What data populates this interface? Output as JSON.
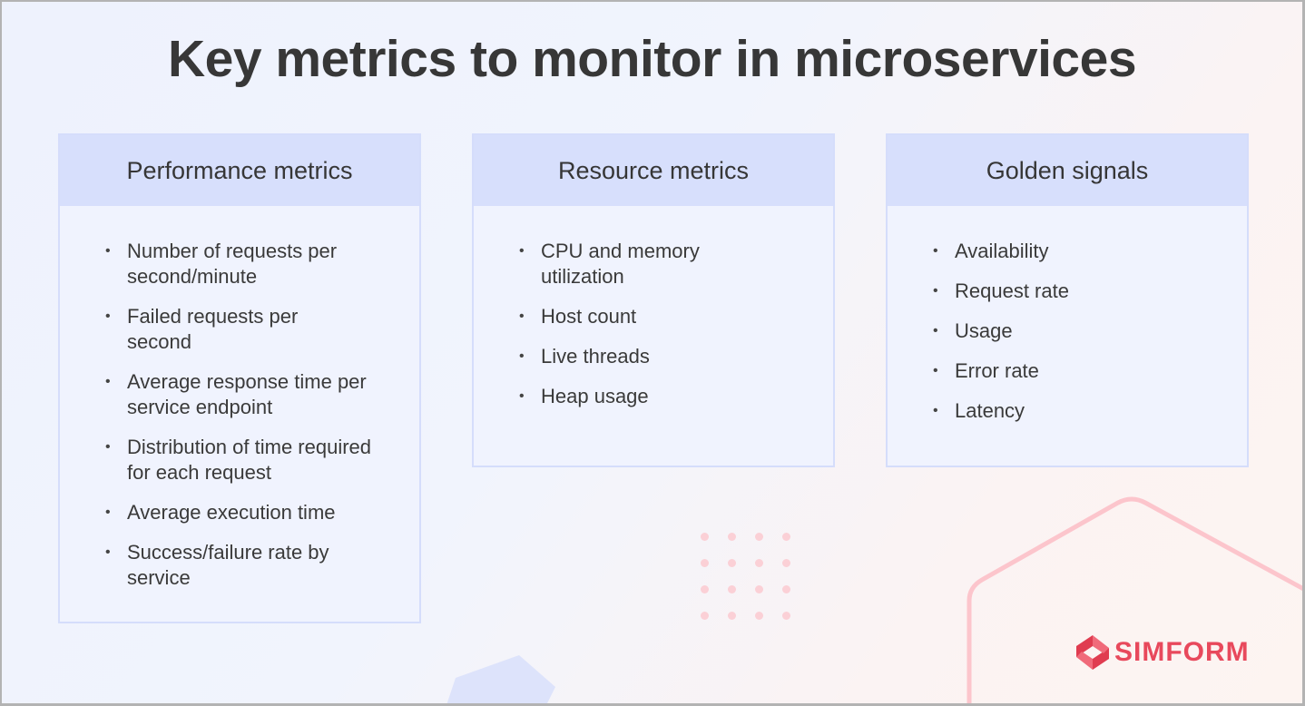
{
  "title": "Key metrics to monitor in microservices",
  "cards": [
    {
      "title": "Performance metrics",
      "items": [
        "Number of requests per second/minute",
        "Failed requests per second",
        "Average response time per service endpoint",
        "Distribution of time required for each request",
        "Average execution time",
        "Success/failure rate by service"
      ]
    },
    {
      "title": "Resource metrics",
      "items": [
        "CPU and memory utilization",
        "Host count",
        "Live threads",
        "Heap usage"
      ]
    },
    {
      "title": "Golden signals",
      "items": [
        "Availability",
        "Request rate",
        "Usage",
        "Error rate",
        "Latency"
      ]
    }
  ],
  "logo": {
    "text": "SIMFORM",
    "color": "#e8495c"
  },
  "colors": {
    "header_bg": "#d7dffc",
    "border": "#d5ddfb",
    "accent": "#e8495c"
  }
}
